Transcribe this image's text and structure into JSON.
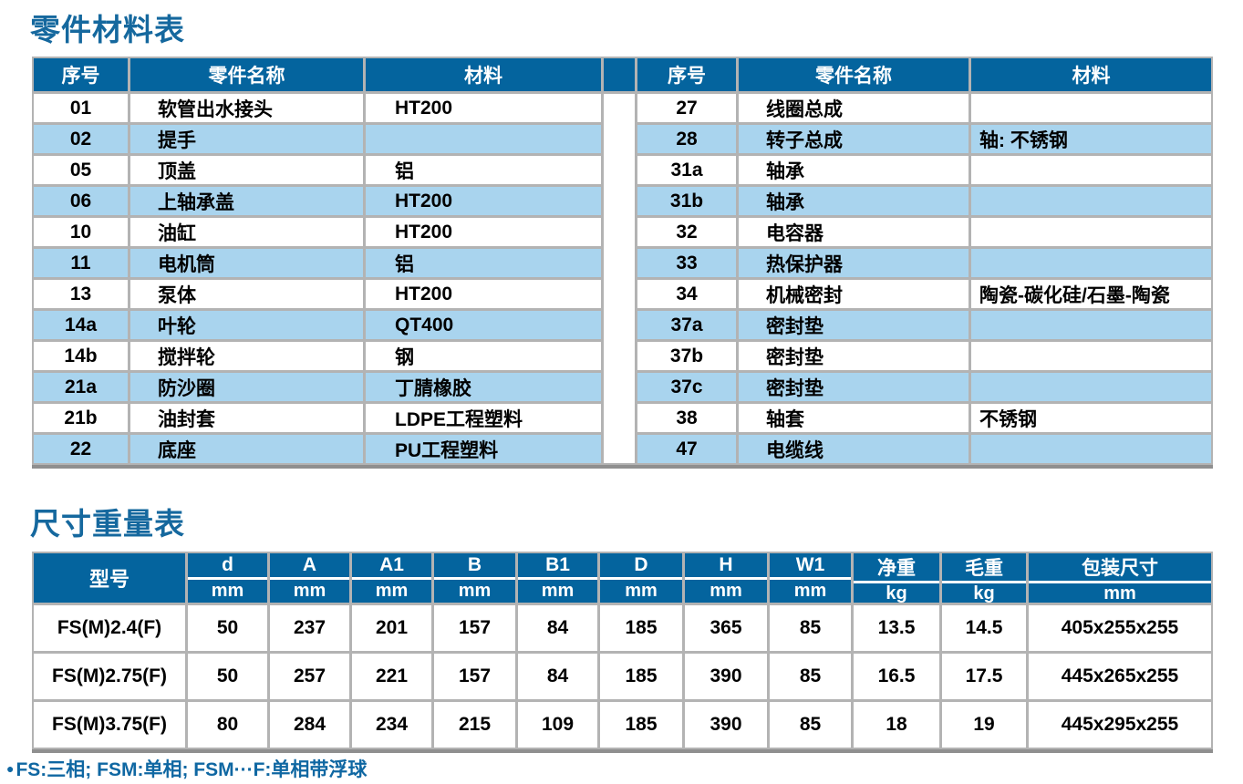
{
  "colors": {
    "header_bg": "#04649e",
    "title_text": "#15689e",
    "row_alt": "#a9d4ee",
    "grid_border": "#b3b3b3",
    "table_bottom_border": "#8f8f8f",
    "body_text": "#000000",
    "header_text": "#ffffff"
  },
  "parts_section": {
    "title": "零件材料表",
    "headers": {
      "no": "序号",
      "name": "零件名称",
      "material": "材料"
    },
    "left_rows": [
      {
        "no": "01",
        "name": "软管出水接头",
        "material": "HT200"
      },
      {
        "no": "02",
        "name": "提手",
        "material": ""
      },
      {
        "no": "05",
        "name": "顶盖",
        "material": "铝"
      },
      {
        "no": "06",
        "name": "上轴承盖",
        "material": "HT200"
      },
      {
        "no": "10",
        "name": "油缸",
        "material": "HT200"
      },
      {
        "no": "11",
        "name": "电机筒",
        "material": "铝"
      },
      {
        "no": "13",
        "name": "泵体",
        "material": "HT200"
      },
      {
        "no": "14a",
        "name": "叶轮",
        "material": "QT400"
      },
      {
        "no": "14b",
        "name": "搅拌轮",
        "material": "钢"
      },
      {
        "no": "21a",
        "name": "防沙圈",
        "material": "丁腈橡胶"
      },
      {
        "no": "21b",
        "name": "油封套",
        "material": "LDPE工程塑料"
      },
      {
        "no": "22",
        "name": "底座",
        "material": "PU工程塑料"
      }
    ],
    "right_rows": [
      {
        "no": "27",
        "name": "线圈总成",
        "material": ""
      },
      {
        "no": "28",
        "name": "转子总成",
        "material": "轴: 不锈钢"
      },
      {
        "no": "31a",
        "name": "轴承",
        "material": ""
      },
      {
        "no": "31b",
        "name": "轴承",
        "material": ""
      },
      {
        "no": "32",
        "name": "电容器",
        "material": ""
      },
      {
        "no": "33",
        "name": "热保护器",
        "material": ""
      },
      {
        "no": "34",
        "name": "机械密封",
        "material": "陶瓷-碳化硅/石墨-陶瓷"
      },
      {
        "no": "37a",
        "name": "密封垫",
        "material": ""
      },
      {
        "no": "37b",
        "name": "密封垫",
        "material": ""
      },
      {
        "no": "37c",
        "name": "密封垫",
        "material": ""
      },
      {
        "no": "38",
        "name": "轴套",
        "material": "不锈钢"
      },
      {
        "no": "47",
        "name": "电缆线",
        "material": ""
      }
    ]
  },
  "dims_section": {
    "title": "尺寸重量表",
    "model_header": "型号",
    "columns": [
      {
        "label": "d",
        "unit": "mm"
      },
      {
        "label": "A",
        "unit": "mm"
      },
      {
        "label": "A1",
        "unit": "mm"
      },
      {
        "label": "B",
        "unit": "mm"
      },
      {
        "label": "B1",
        "unit": "mm"
      },
      {
        "label": "D",
        "unit": "mm"
      },
      {
        "label": "H",
        "unit": "mm"
      },
      {
        "label": "W1",
        "unit": "mm"
      },
      {
        "label": "净重",
        "unit": "kg"
      },
      {
        "label": "毛重",
        "unit": "kg"
      },
      {
        "label": "包装尺寸",
        "unit": "mm"
      }
    ],
    "rows": [
      {
        "model": "FS(M)2.4(F)",
        "v0": "50",
        "v1": "237",
        "v2": "201",
        "v3": "157",
        "v4": "84",
        "v5": "185",
        "v6": "365",
        "v7": "85",
        "v8": "13.5",
        "v9": "14.5",
        "v10": "405x255x255"
      },
      {
        "model": "FS(M)2.75(F)",
        "v0": "50",
        "v1": "257",
        "v2": "221",
        "v3": "157",
        "v4": "84",
        "v5": "185",
        "v6": "390",
        "v7": "85",
        "v8": "16.5",
        "v9": "17.5",
        "v10": "445x265x255"
      },
      {
        "model": "FS(M)3.75(F)",
        "v0": "80",
        "v1": "284",
        "v2": "234",
        "v3": "215",
        "v4": "109",
        "v5": "185",
        "v6": "390",
        "v7": "85",
        "v8": "18",
        "v9": "19",
        "v10": "445x295x255"
      }
    ]
  },
  "footnote": {
    "bullet": "●",
    "text": "FS:三相; FSM:单相; FSM···F:单相带浮球"
  }
}
